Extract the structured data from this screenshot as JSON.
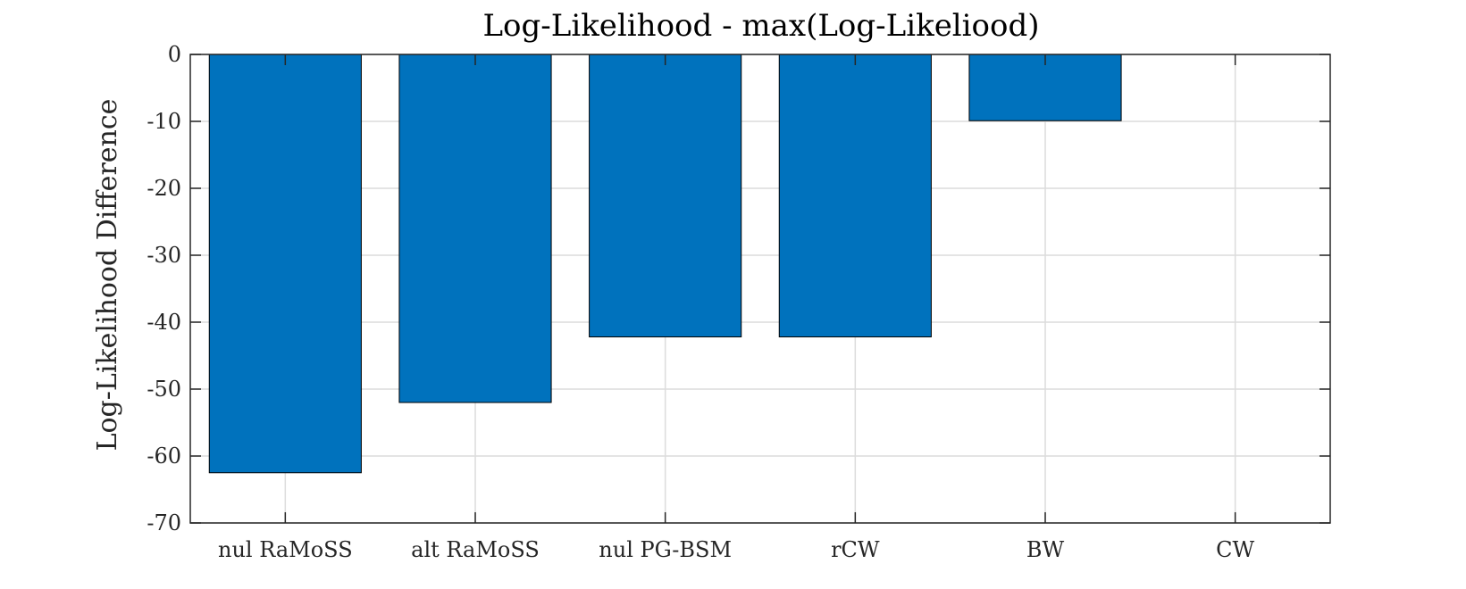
{
  "chart_data": {
    "type": "bar",
    "title": "Log-Likelihood - max(Log-Likeliood)",
    "xlabel": "",
    "ylabel": "Log-Likelihood Difference",
    "categories": [
      "nul RaMoSS",
      "alt RaMoSS",
      "nul PG-BSM",
      "rCW",
      "BW",
      "CW"
    ],
    "values": [
      -62.5,
      -52,
      -42.2,
      -42.2,
      -9.9,
      0
    ],
    "ylim": [
      -70,
      0
    ],
    "yticks": [
      0,
      -10,
      -20,
      -30,
      -40,
      -50,
      -60,
      -70
    ],
    "grid": true,
    "legend": "none",
    "bar_color": "#0072BD",
    "edge_color": "#000000"
  }
}
